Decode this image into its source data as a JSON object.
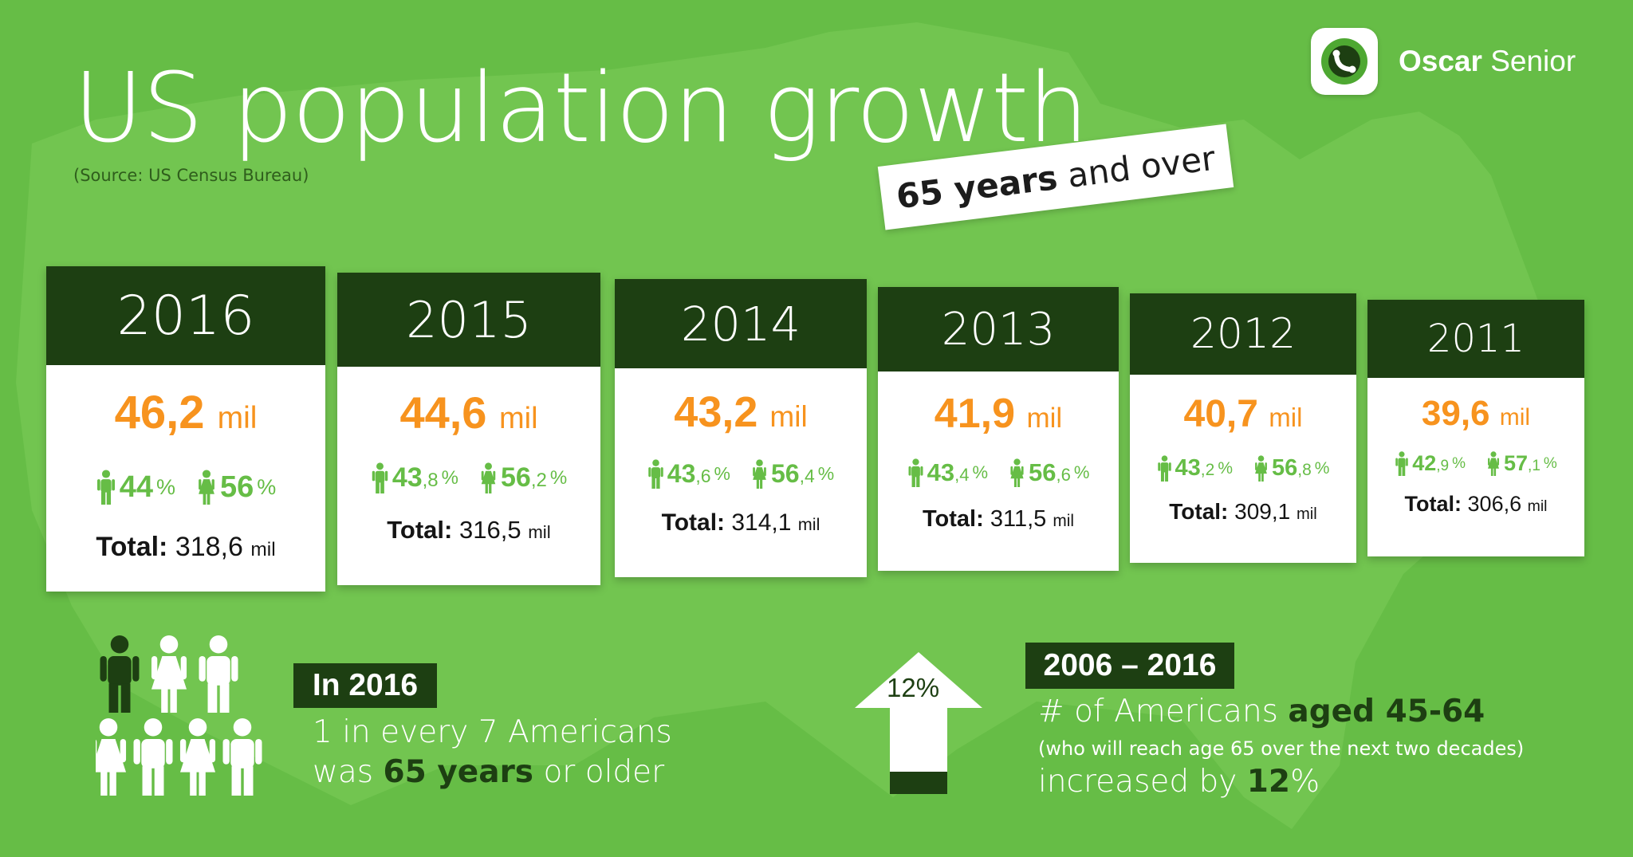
{
  "title": "US population growth",
  "source": "(Source: US Census Bureau)",
  "tag": {
    "bold": "65 years",
    "rest": "and over"
  },
  "brand": {
    "name_bold": "Oscar",
    "name_rest": "Senior"
  },
  "colors": {
    "background": "#66bd46",
    "dark": "#1d3f12",
    "orange": "#f7931e",
    "map": "#72c550"
  },
  "cards": [
    {
      "year": "2016",
      "pop": "46,2",
      "unit": "mil",
      "men_int": "44",
      "men_dec": "",
      "women_int": "56",
      "women_dec": "",
      "pct": "%",
      "total_label": "Total:",
      "total": "318,6",
      "total_unit": "mil"
    },
    {
      "year": "2015",
      "pop": "44,6",
      "unit": "mil",
      "men_int": "43",
      "men_dec": ",8",
      "women_int": "56",
      "women_dec": ",2",
      "pct": "%",
      "total_label": "Total:",
      "total": "316,5",
      "total_unit": "mil"
    },
    {
      "year": "2014",
      "pop": "43,2",
      "unit": "mil",
      "men_int": "43",
      "men_dec": ",6",
      "women_int": "56",
      "women_dec": ",4",
      "pct": "%",
      "total_label": "Total:",
      "total": "314,1",
      "total_unit": "mil"
    },
    {
      "year": "2013",
      "pop": "41,9",
      "unit": "mil",
      "men_int": "43",
      "men_dec": ",4",
      "women_int": "56",
      "women_dec": ",6",
      "pct": "%",
      "total_label": "Total:",
      "total": "311,5",
      "total_unit": "mil"
    },
    {
      "year": "2012",
      "pop": "40,7",
      "unit": "mil",
      "men_int": "43",
      "men_dec": ",2",
      "women_int": "56",
      "women_dec": ",8",
      "pct": "%",
      "total_label": "Total:",
      "total": "309,1",
      "total_unit": "mil"
    },
    {
      "year": "2011",
      "pop": "39,6",
      "unit": "mil",
      "men_int": "42",
      "men_dec": ",9",
      "women_int": "57",
      "women_dec": ",1",
      "pct": "%",
      "total_label": "Total:",
      "total": "306,6",
      "total_unit": "mil"
    }
  ],
  "in2016": {
    "badge": "In 2016",
    "line1": "1 in every 7 Americans",
    "line2_pre": "was",
    "line2_bold": "65 years",
    "line2_post": "or older",
    "people_count": 7,
    "highlighted_count": 1
  },
  "growth": {
    "arrow_label": "12%",
    "period": "2006 – 2016",
    "line1_pre": "# of Americans",
    "line1_bold": "aged 45-64",
    "line2": "(who will reach age 65 over the next two decades)",
    "line3_pre": "increased by",
    "line3_bold": "12",
    "line3_post": "%"
  }
}
